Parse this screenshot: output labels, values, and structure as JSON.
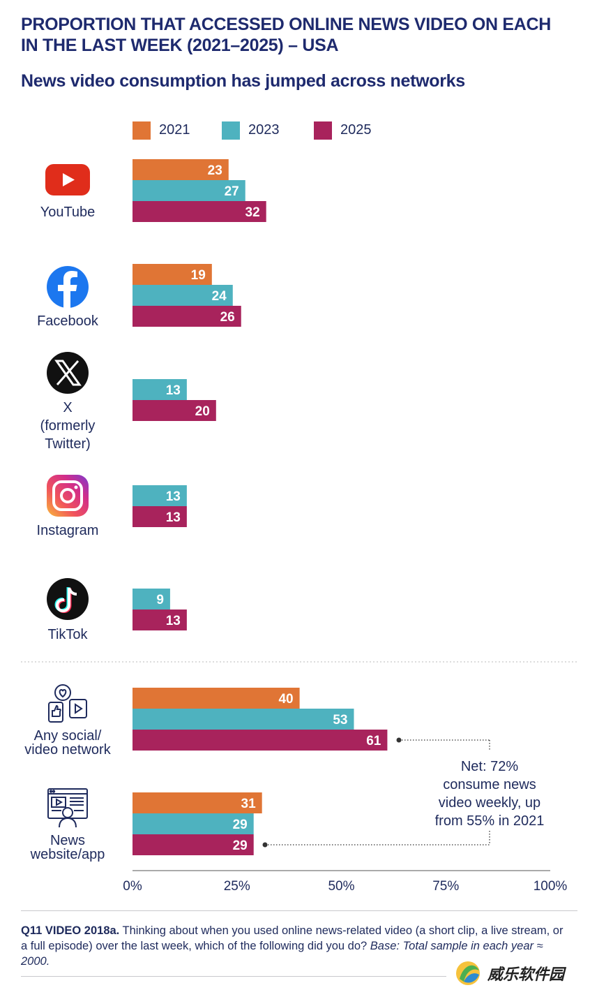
{
  "title": "PROPORTION THAT ACCESSED ONLINE NEWS VIDEO ON EACH IN THE LAST WEEK (2021–2025) – USA",
  "subtitle": "News video consumption has jumped across networks",
  "colors": {
    "2021": "#e07535",
    "2023": "#4eb2bf",
    "2025": "#a8235c",
    "text": "#1e2a5c",
    "title": "#1e2a6e"
  },
  "chart_data": {
    "type": "bar",
    "orientation": "horizontal",
    "title": "PROPORTION THAT ACCESSED ONLINE NEWS VIDEO ON EACH IN THE LAST WEEK (2021–2025) – USA",
    "subtitle": "News video consumption has jumped across networks",
    "xlim": [
      0,
      100
    ],
    "xticks": [
      "0%",
      "25%",
      "50%",
      "75%",
      "100%"
    ],
    "legend_position": "top",
    "grid": false,
    "series_names": [
      "2021",
      "2023",
      "2025"
    ],
    "categories": [
      {
        "label": "YouTube",
        "icon": "youtube-icon",
        "values": {
          "2021": 23,
          "2023": 27,
          "2025": 32
        }
      },
      {
        "label": "Facebook",
        "icon": "facebook-icon",
        "values": {
          "2021": 19,
          "2023": 24,
          "2025": 26
        }
      },
      {
        "label": "X (formerly Twitter)",
        "icon": "x-twitter-icon",
        "values": {
          "2021": null,
          "2023": 13,
          "2025": 20
        }
      },
      {
        "label": "Instagram",
        "icon": "instagram-icon",
        "values": {
          "2021": null,
          "2023": 13,
          "2025": 13
        }
      },
      {
        "label": "TikTok",
        "icon": "tiktok-icon",
        "values": {
          "2021": null,
          "2023": 9,
          "2025": 13
        }
      },
      {
        "label": "Any social/ video network",
        "icon": "social-network-icon",
        "values": {
          "2021": 40,
          "2023": 53,
          "2025": 61
        }
      },
      {
        "label": "News website/app",
        "icon": "news-website-icon",
        "values": {
          "2021": 31,
          "2023": 29,
          "2025": 29
        }
      }
    ],
    "annotation": "Net: 72% consume news video weekly, up from 55% in 2021"
  },
  "footnote": {
    "question": "Q11 VIDEO 2018a.",
    "text": " Thinking about when you used online news-related video (a short clip, a live stream, or a full episode) over the last week, which of the following did you do? ",
    "base": "Base: Total sample in each year ≈ 2000."
  },
  "watermark": "威乐软件园"
}
